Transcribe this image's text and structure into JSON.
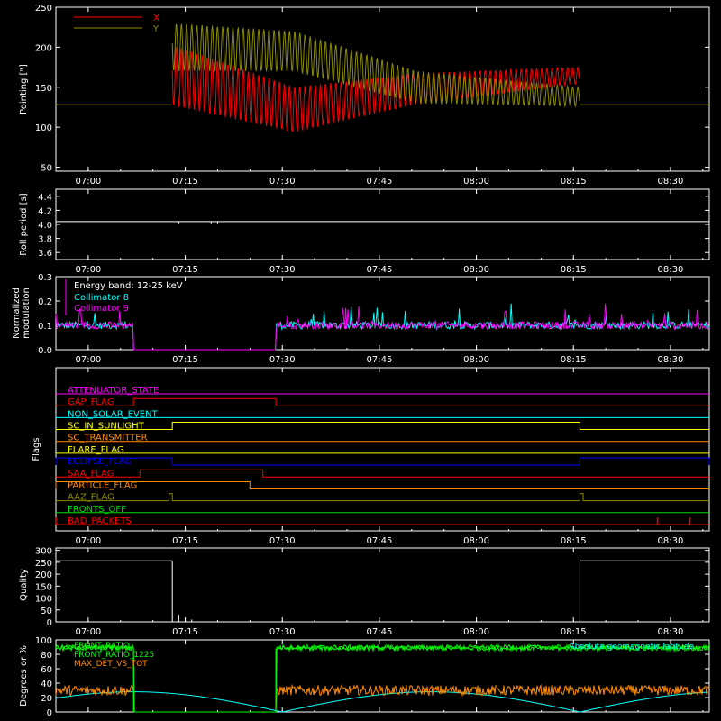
{
  "time_ticks": [
    "07:00",
    "07:15",
    "07:30",
    "07:45",
    "08:00",
    "08:15",
    "08:30"
  ],
  "colors": {
    "background": "#000000",
    "axes": "#ffffff",
    "red": "#ff0000",
    "olive": "#8b8b00",
    "cyan": "#00ffff",
    "magenta": "#ff00ff",
    "green": "#00ff00",
    "orange": "#ff8c00",
    "yellow": "#ffff00",
    "blue": "#0000ff",
    "lime": "#00dd00"
  },
  "chart_data": [
    {
      "id": "pointing",
      "type": "line",
      "ylabel": "Pointing [\"]",
      "ylim": [
        45,
        250
      ],
      "yticks": [
        "50",
        "100",
        "150",
        "200",
        "250"
      ],
      "xlim": [
        "06:55",
        "08:36"
      ],
      "legend": [
        {
          "name": "X",
          "color": "#ff0000"
        },
        {
          "name": "Y",
          "color": "#8b8b00"
        }
      ],
      "series": [
        {
          "name": "X",
          "before_start": "07:13",
          "end": "08:16",
          "flat_value": 128,
          "center": [
            [
              0,
              165
            ],
            [
              0.3,
              122
            ],
            [
              0.6,
              148
            ],
            [
              1,
              165
            ]
          ],
          "amplitude": [
            [
              0,
              38
            ],
            [
              0.5,
              22
            ],
            [
              1,
              10
            ]
          ]
        },
        {
          "name": "Y",
          "before_start": "07:13",
          "end": "08:16",
          "flat_value": 128,
          "center": [
            [
              0,
              200
            ],
            [
              0.3,
              195
            ],
            [
              0.6,
              150
            ],
            [
              1,
              138
            ]
          ],
          "amplitude": [
            [
              0,
              30
            ],
            [
              0.5,
              22
            ],
            [
              1,
              12
            ]
          ]
        }
      ]
    },
    {
      "id": "roll-period",
      "type": "line",
      "ylabel": "Roll period [s]",
      "ylim": [
        3.5,
        4.5
      ],
      "yticks": [
        "3.6",
        "3.8",
        "4.0",
        "4.2",
        "4.4"
      ],
      "series": [
        {
          "name": "",
          "value": 4.04,
          "dips": [
            "07:14",
            "07:19",
            "07:20"
          ]
        }
      ]
    },
    {
      "id": "modulation",
      "type": "line",
      "ylabel": "Normalized modulation",
      "ylim": [
        0,
        0.3
      ],
      "yticks": [
        "0.0",
        "0.1",
        "0.2",
        "0.3"
      ],
      "annotation": "Energy band: 12-25 keV",
      "series": [
        {
          "name": "Collimator 8",
          "color": "#00ffff",
          "baseline": 0.1,
          "noise": 0.015
        },
        {
          "name": "Collimator 9",
          "color": "#ff00ff",
          "baseline": 0.1,
          "noise": 0.015
        }
      ],
      "gap": [
        "07:07",
        "07:29"
      ]
    },
    {
      "id": "flags",
      "type": "line",
      "ylabel": "Flags",
      "flags": [
        {
          "name": "ATTENUATOR_STATE",
          "color": "#ff00ff",
          "segments": []
        },
        {
          "name": "GAP_FLAG",
          "color": "#ff0000",
          "segments": [
            [
              "07:07",
              "07:29"
            ]
          ]
        },
        {
          "name": "NON_SOLAR_EVENT",
          "color": "#00ffff",
          "segments": []
        },
        {
          "name": "SC_IN_SUNLIGHT",
          "color": "#ffff00",
          "segments": [
            [
              "07:13",
              "08:16"
            ]
          ]
        },
        {
          "name": "SC_TRANSMITTER",
          "color": "#ff8c00",
          "segments": []
        },
        {
          "name": "FLARE_FLAG",
          "color": "#ffff00",
          "segments": []
        },
        {
          "name": "ECLIPSE_FLAG",
          "color": "#0000ff",
          "segments": [
            [
              "06:55",
              "07:13"
            ],
            [
              "08:16",
              "08:36"
            ]
          ]
        },
        {
          "name": "SAA_FLAG",
          "color": "#ff0000",
          "segments": [
            [
              "07:08",
              "07:27"
            ]
          ]
        },
        {
          "name": "PARTICLE_FLAG",
          "color": "#ff8c00",
          "segments": [
            [
              "06:55",
              "07:25"
            ]
          ]
        },
        {
          "name": "AAZ_FLAG",
          "color": "#8b8b00",
          "segments": [
            [
              "07:12.5",
              "07:13"
            ],
            [
              "08:16",
              "08:16.5"
            ]
          ]
        },
        {
          "name": "FRONTS_OFF",
          "color": "#00dd00",
          "segments": []
        },
        {
          "name": "BAD_PACKETS",
          "color": "#ff0000",
          "spikes": [
            "06:55",
            "08:28",
            "08:33"
          ]
        }
      ]
    },
    {
      "id": "quality",
      "type": "line",
      "ylabel": "Quality",
      "ylim": [
        0,
        310
      ],
      "yticks": [
        "0",
        "50",
        "100",
        "150",
        "200",
        "250",
        "300"
      ],
      "series": [
        {
          "name": "",
          "high_value": 256,
          "high_segments": [
            [
              "06:55",
              "07:13"
            ],
            [
              "08:16",
              "08:36"
            ]
          ],
          "spikes": [
            [
              "07:14",
              30
            ],
            [
              "07:15",
              15
            ],
            [
              "07:16",
              10
            ]
          ]
        }
      ]
    },
    {
      "id": "degrees",
      "type": "line",
      "ylabel": "Degrees or %",
      "ylim": [
        0,
        100
      ],
      "yticks": [
        "0",
        "20",
        "40",
        "60",
        "80",
        "100"
      ],
      "annotation": "Absolute geomagnetic latitude",
      "series": [
        {
          "name": "FRONT_RATIO",
          "color": "#00ff00",
          "value": 88,
          "noise": 3
        },
        {
          "name": "FRONT_RATIO_1225",
          "color": "#00ff00",
          "value": 90,
          "noise": 3
        },
        {
          "name": "MAX_DET_VS_TOT",
          "color": "#ff8c00",
          "value": 30,
          "noise": 7
        },
        {
          "name": "Absolute geomagnetic latitude",
          "color": "#00ffff",
          "minima": [
            "07:30",
            "08:16"
          ],
          "max": 28
        }
      ],
      "gap": [
        "07:07",
        "07:29"
      ]
    }
  ]
}
